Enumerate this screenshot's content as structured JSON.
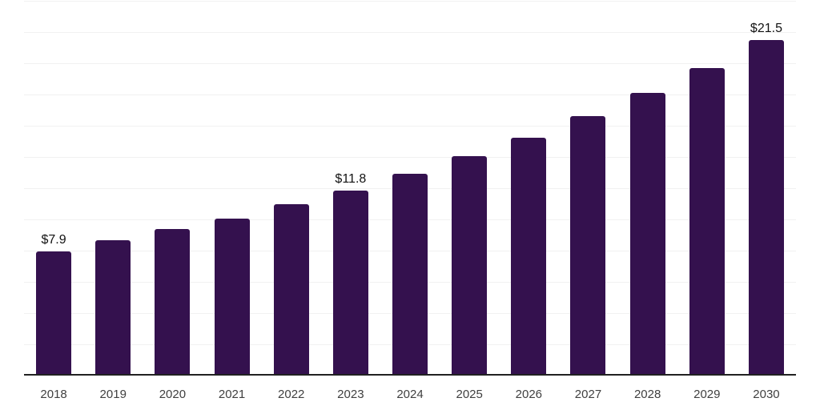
{
  "chart_data": {
    "type": "bar",
    "title": "",
    "xlabel": "",
    "ylabel": "",
    "categories": [
      "2018",
      "2019",
      "2020",
      "2021",
      "2022",
      "2023",
      "2024",
      "2025",
      "2026",
      "2027",
      "2028",
      "2029",
      "2030"
    ],
    "values": [
      7.9,
      8.6,
      9.3,
      10.0,
      10.9,
      11.8,
      12.9,
      14.0,
      15.2,
      16.6,
      18.1,
      19.7,
      21.5
    ],
    "data_labels": [
      {
        "index": 0,
        "text": "$7.9"
      },
      {
        "index": 5,
        "text": "$11.8"
      },
      {
        "index": 12,
        "text": "$21.5"
      }
    ],
    "ylim": [
      0,
      24
    ],
    "gridline_step": 2,
    "grid": true,
    "legend": "none",
    "colors": {
      "bar": "#34114e",
      "axis_line": "#212121",
      "gridline": "#f1f1f1",
      "tick_label": "#404040",
      "data_label": "#121212",
      "background": "#ffffff"
    }
  }
}
